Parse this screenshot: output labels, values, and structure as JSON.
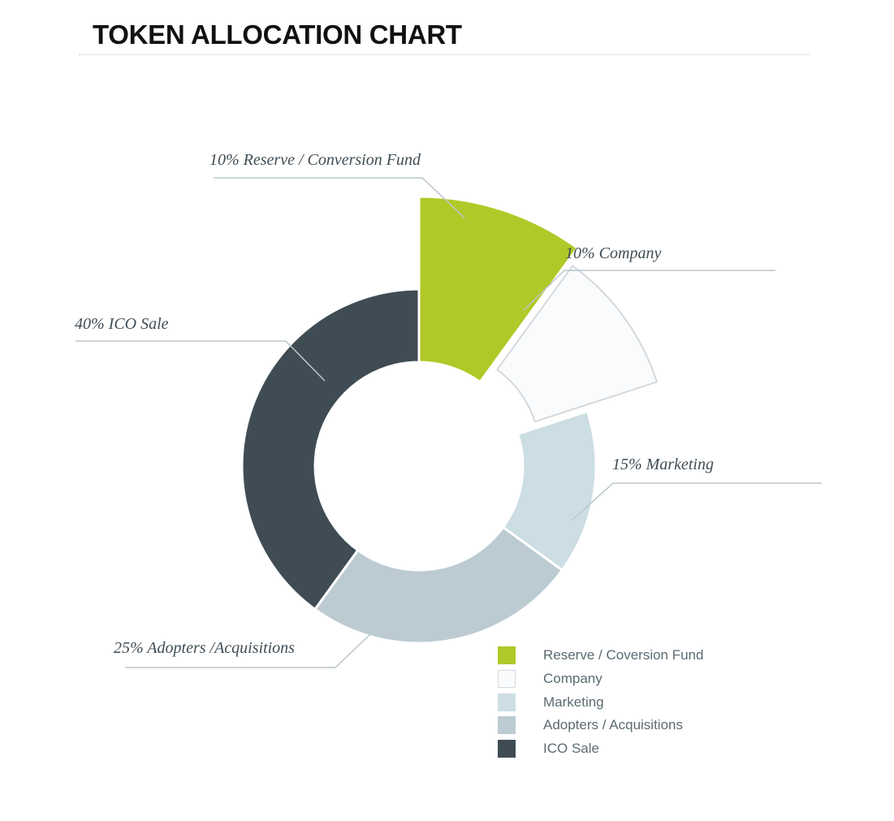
{
  "title": "TOKEN ALLOCATION CHART",
  "chart_data": {
    "type": "pie",
    "variant": "donut",
    "title": "TOKEN ALLOCATION CHART",
    "slices": [
      {
        "name": "Reserve / Coversion Fund",
        "value": 10,
        "callout": "10% Reserve / Conversion Fund",
        "color": "#b1c928",
        "stroke": "#ffffff",
        "exploded": true
      },
      {
        "name": "Company",
        "value": 10,
        "callout": "10% Company",
        "color": "#fafbfc",
        "stroke": "#d5d9dc",
        "exploded": true
      },
      {
        "name": "Marketing",
        "value": 15,
        "callout": "15% Marketing",
        "color": "#ccdde4",
        "stroke": "#ffffff",
        "exploded": false
      },
      {
        "name": "Adopters / Acquisitions",
        "value": 25,
        "callout": "25% Adopters /Acquisitions",
        "color": "#bccbd2",
        "stroke": "#ffffff",
        "exploded": false
      },
      {
        "name": "ICO Sale",
        "value": 40,
        "callout": "40% ICO Sale",
        "color": "#3f4c54",
        "stroke": "#ffffff",
        "exploded": false
      }
    ],
    "legend_position": "bottom-right"
  }
}
